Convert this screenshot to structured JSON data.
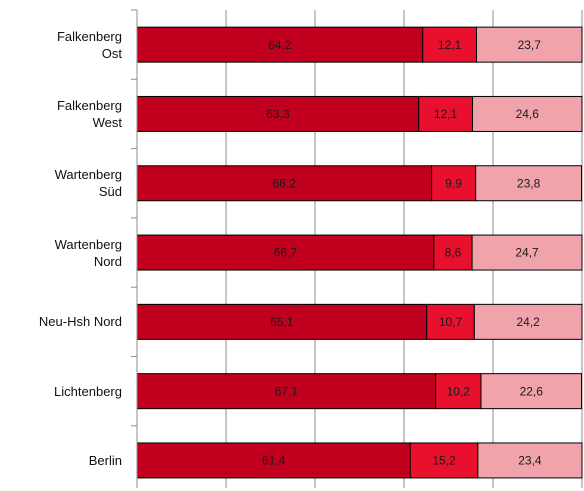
{
  "chart_data": {
    "type": "stacked-barh",
    "categories": [
      "Falkenberg\nOst",
      "Falkenberg\nWest",
      "Wartenberg\nSüd",
      "Wartenberg\nNord",
      "Neu-Hsh Nord",
      "Lichtenberg",
      "Berlin"
    ],
    "series": [
      {
        "color": "#c0001e",
        "values": [
          64.2,
          63.3,
          66.2,
          66.7,
          65.1,
          67.1,
          61.4
        ],
        "value_labels": [
          "64,2",
          "63,3",
          "66,2",
          "66,7",
          "65,1",
          "67,1",
          "61,4"
        ]
      },
      {
        "color": "#e8102d",
        "values": [
          12.1,
          12.1,
          9.9,
          8.6,
          10.7,
          10.2,
          15.2
        ],
        "value_labels": [
          "12,1",
          "12,1",
          "9,9",
          "8,6",
          "10,7",
          "10,2",
          "15,2"
        ]
      },
      {
        "color": "#f0a3aa",
        "values": [
          23.7,
          24.6,
          23.8,
          24.7,
          24.2,
          22.6,
          23.4
        ],
        "value_labels": [
          "23,7",
          "24,6",
          "23,8",
          "24,7",
          "24,2",
          "22,6",
          "23,4"
        ]
      }
    ],
    "xlim": [
      0,
      100
    ],
    "xticks": [
      0,
      20,
      40,
      60,
      80,
      100
    ],
    "grid": true
  }
}
